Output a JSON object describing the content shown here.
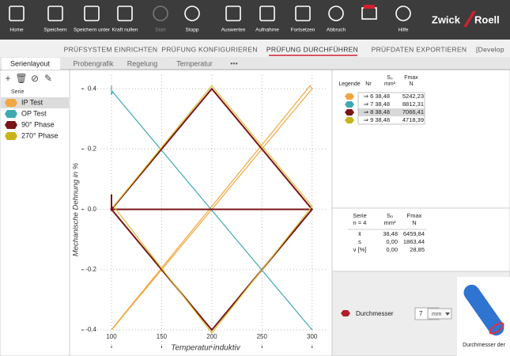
{
  "toolbar": {
    "buttons": [
      "Home",
      "Speichern",
      "Speichern unter",
      "Kraft nullen",
      "Start",
      "Stopp",
      "Auswerten",
      "Aufnahme",
      "Fortsetzen",
      "Abbruch",
      "Hilfe"
    ],
    "logo": [
      "Zwick",
      "Roell"
    ]
  },
  "main_tabs": [
    "PRÜFSYSTEM EINRICHTEN",
    "PRÜFUNG KONFIGURIEREN",
    "PRÜFUNG DURCHFÜHREN",
    "PRÜFDATEN EXPORTIEREN",
    "[Develop"
  ],
  "sub_tabs": [
    "Serienlayout",
    "Probengrafik",
    "Regelung",
    "Temperatur",
    "•••"
  ],
  "tree": {
    "root": "Serie",
    "items": [
      "IP Test",
      "OP Test",
      "90° Phase",
      "270° Phase"
    ]
  },
  "chart": {
    "type": "line",
    "xlabel": "Temperatur induktiv",
    "ylabel": "Mechanische Dehnung in %",
    "xlim": [
      70,
      316
    ],
    "ylim": [
      -0.46,
      0.445
    ],
    "xticks": [
      100,
      150,
      200,
      250,
      300
    ],
    "yticks": [
      -0.4,
      -0.2,
      {
        "value": 0,
        "label": "0.0"
      },
      0.2,
      0.4
    ],
    "grid": true,
    "series": [
      {
        "name": "IP Test",
        "color": "#f2a640",
        "x": [
          100,
          300,
          298,
          102,
          100
        ],
        "values": [
          -0.4,
          0.4,
          0.41,
          -0.39,
          -0.4
        ]
      },
      {
        "name": "OP Test",
        "color": "#3fa9b2",
        "x": [
          100,
          100,
          101,
          300
        ],
        "values": [
          0.41,
          0.38,
          0.39,
          -0.4
        ]
      },
      {
        "name": "90° Phase",
        "color": "#7a1416",
        "x": [
          100,
          100,
          200,
          300,
          200,
          100,
          300
        ],
        "values": [
          0.05,
          0,
          0.4,
          0,
          -0.4,
          0,
          0
        ]
      },
      {
        "name": "270° Phase",
        "color": "#d9c230",
        "x": [
          102,
          200,
          300,
          200,
          102
        ],
        "values": [
          0.01,
          0.41,
          0.01,
          -0.41,
          0.01
        ]
      }
    ]
  },
  "legend_table": {
    "header": [
      [
        "Legende",
        "Nr",
        "S₀",
        "Fmax"
      ],
      [
        "",
        "",
        "mm²",
        "N"
      ]
    ],
    "rows": [
      [
        "⇒ 6",
        "38,48",
        "5242,23"
      ],
      [
        "⇒ 7",
        "38,48",
        "8812,31"
      ],
      [
        "⇒ 8",
        "38,48",
        "7066,41"
      ],
      [
        "⇒ 9",
        "38,48",
        "4718,39"
      ]
    ]
  },
  "stats_table": {
    "header": [
      [
        "Serie",
        "S₀",
        "Fmax"
      ],
      [
        "n = 4",
        "mm²",
        "N"
      ]
    ],
    "rows": [
      [
        "x̄",
        "38,48",
        "6459,84"
      ],
      [
        "s",
        "0,00",
        "1863,44"
      ],
      [
        "ν [%]",
        "0,00",
        "28,85"
      ]
    ]
  },
  "input": {
    "label": "Durchmesser",
    "value": "7",
    "unit": "mm"
  },
  "image_caption": "Durchmesser der"
}
